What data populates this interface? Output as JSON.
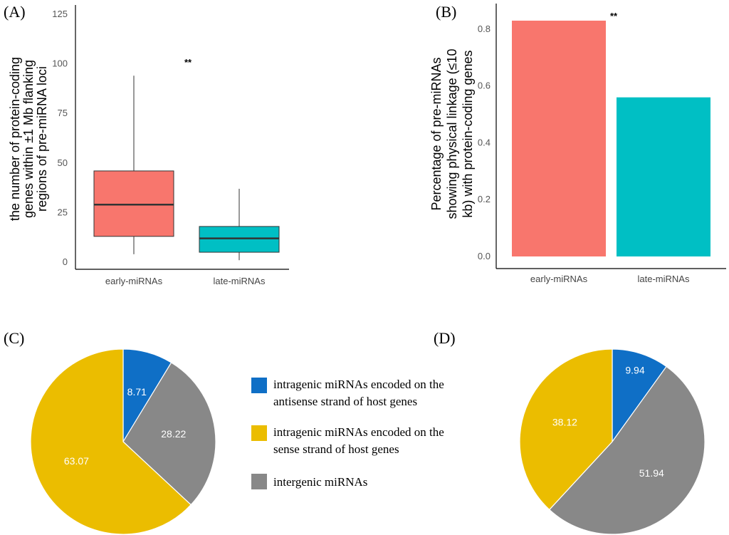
{
  "colors": {
    "early": "#F8766D",
    "late": "#00BFC4",
    "antisense": "#0F6FC6",
    "sense": "#EBBD00",
    "intergenic": "#888888"
  },
  "legend": {
    "items": [
      {
        "key": "antisense",
        "line1": "intragenic miRNAs encoded on the",
        "line2": "antisense strand of host genes"
      },
      {
        "key": "sense",
        "line1": "intragenic miRNAs encoded on the",
        "line2": "sense strand of host genes"
      },
      {
        "key": "intergenic",
        "line1": "intergenic miRNAs",
        "line2": ""
      }
    ]
  },
  "chart_data": [
    {
      "id": "A",
      "panel_label": "(A)",
      "type": "box",
      "categories": [
        "early-miRNAs",
        "late-miRNAs"
      ],
      "boxes": [
        {
          "name": "early-miRNAs",
          "min": 4,
          "q1": 13,
          "median": 29,
          "q3": 46,
          "max": 94
        },
        {
          "name": "late-miRNAs",
          "min": 1,
          "q1": 5,
          "median": 12,
          "q3": 18,
          "max": 37
        }
      ],
      "ylabel_lines": [
        "the number of protein-coding",
        "genes within ±1 Mb flanking",
        "regions of pre-miRNA loci"
      ],
      "yticks": [
        0,
        25,
        50,
        75,
        100,
        125
      ],
      "ylim": [
        0,
        125
      ],
      "significance": "**",
      "grid": false
    },
    {
      "id": "B",
      "panel_label": "(B)",
      "type": "bar",
      "categories": [
        "early-miRNAs",
        "late-miRNAs"
      ],
      "values": [
        0.83,
        0.56
      ],
      "ylabel_lines": [
        "Percentage of pre-miRNAs",
        "showing physical linkage (≤10",
        "kb) with protein-coding genes"
      ],
      "yticks": [
        "0.0",
        "0.2",
        "0.4",
        "0.6",
        "0.8"
      ],
      "ylim": [
        0,
        0.85
      ],
      "significance": "**",
      "grid": false
    },
    {
      "id": "C",
      "panel_label": "(C)",
      "type": "pie",
      "slices": [
        {
          "key": "antisense",
          "value": 8.71,
          "label": "8.71"
        },
        {
          "key": "intergenic",
          "value": 28.22,
          "label": "28.22"
        },
        {
          "key": "sense",
          "value": 63.07,
          "label": "63.07"
        }
      ]
    },
    {
      "id": "D",
      "panel_label": "(D)",
      "type": "pie",
      "slices": [
        {
          "key": "antisense",
          "value": 9.94,
          "label": "9.94"
        },
        {
          "key": "intergenic",
          "value": 51.94,
          "label": "51.94"
        },
        {
          "key": "sense",
          "value": 38.12,
          "label": "38.12"
        }
      ]
    }
  ]
}
